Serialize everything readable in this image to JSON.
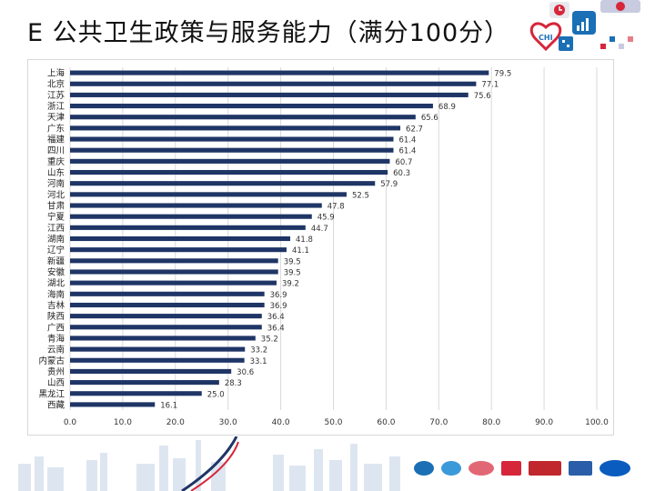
{
  "slide": {
    "title": "E  公共卫生政策与服务能力（满分100分）"
  },
  "logos": {
    "icons": [
      "heart-clock-icon",
      "chi-heart-logo",
      "chart-tile-icon",
      "network-tile-icon",
      "chi-tag-icon"
    ]
  },
  "colors": {
    "bar": "#1f3566",
    "grid": "#d9d9d9",
    "text": "#333333",
    "accent_red": "#d6263a",
    "accent_blue": "#1a6fb5"
  },
  "chart_data": {
    "type": "bar",
    "orientation": "horizontal",
    "categories": [
      "上海",
      "北京",
      "江苏",
      "浙江",
      "天津",
      "广东",
      "福建",
      "四川",
      "重庆",
      "山东",
      "河南",
      "河北",
      "甘肃",
      "宁夏",
      "江西",
      "湖南",
      "辽宁",
      "新疆",
      "安徽",
      "湖北",
      "海南",
      "吉林",
      "陕西",
      "广西",
      "青海",
      "云南",
      "内蒙古",
      "贵州",
      "山西",
      "黑龙江",
      "西藏"
    ],
    "values": [
      79.5,
      77.1,
      75.6,
      68.9,
      65.6,
      62.7,
      61.4,
      61.4,
      60.7,
      60.3,
      57.9,
      52.5,
      47.8,
      45.9,
      44.7,
      41.8,
      41.1,
      39.5,
      39.5,
      39.2,
      36.9,
      36.9,
      36.4,
      36.4,
      35.2,
      33.2,
      33.1,
      30.6,
      28.3,
      25.0,
      16.1
    ],
    "value_labels": [
      "79.5",
      "77.1",
      "75.6",
      "68.9",
      "65.6",
      "62.7",
      "61.4",
      "61.4",
      "60.7",
      "60.3",
      "57.9",
      "52.5",
      "47.8",
      "45.9",
      "44.7",
      "41.8",
      "41.1",
      "39.5",
      "39.5",
      "39.2",
      "36.9",
      "36.9",
      "36.4",
      "36.4",
      "35.2",
      "33.2",
      "33.1",
      "30.6",
      "28.3",
      "25.0",
      "16.1"
    ],
    "xlim": [
      0,
      100
    ],
    "xticks": [
      "0.0",
      "10.0",
      "20.0",
      "30.0",
      "40.0",
      "50.0",
      "60.0",
      "70.0",
      "80.0",
      "90.0",
      "100.0"
    ],
    "grid": true,
    "title": "",
    "xlabel": "",
    "ylabel": ""
  },
  "footer": {
    "sponsors": [
      "sponsor-logo-1",
      "sponsor-logo-2",
      "sponsor-logo-3",
      "sponsor-logo-4",
      "sponsor-logo-health-news",
      "sponsor-logo-6",
      "pfizer-logo"
    ],
    "pfizer_text": "Pfizer"
  }
}
